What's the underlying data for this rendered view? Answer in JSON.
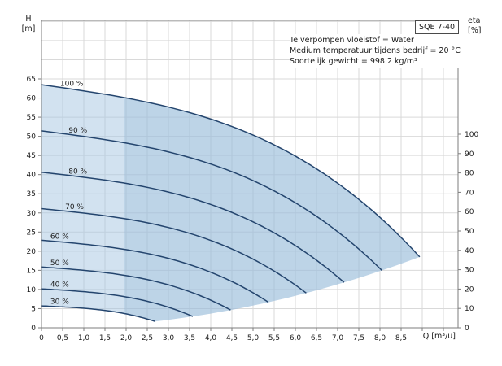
{
  "title_box": {
    "label": "SQE 7-40"
  },
  "axis_titles": {
    "left": [
      "H",
      "[m]"
    ],
    "right": [
      "eta",
      "[%]"
    ],
    "bottom": "Q [m³/u]"
  },
  "annotation": {
    "lines": [
      "Te verpompen vloeistof = Water",
      "Medium temperatuur tijdens bedrijf = 20 °C",
      "Soortelijk gewicht = 998.2 kg/m³"
    ]
  },
  "chart_data": {
    "type": "line",
    "title": "SQE 7-40 pump performance curves",
    "xlabel": "Q [m³/u]",
    "ylabel_left": "H [m]",
    "ylabel_right": "eta [%]",
    "x_axis": {
      "min": 0,
      "max": 9.85,
      "tick_step": 0.5,
      "last_labeled_tick": 8.5,
      "decimal_separator": ","
    },
    "y_axis_left": {
      "min": 0,
      "max": 65,
      "tick_step": 5
    },
    "y_axis_right": {
      "min": 0,
      "max": 100,
      "tick_step": 10
    },
    "grid": true,
    "legend_position": "on-curve-labels",
    "series": [
      {
        "name": "100 %",
        "speed": 1.0,
        "shutoff_head_m": 63.5,
        "max_flow_m3h": 8.94,
        "head_at_max_flow_m": 18.5,
        "label_anchor_q": 0.44
      },
      {
        "name": "90 %",
        "speed": 0.9,
        "shutoff_head_m": 51.4,
        "max_flow_m3h": 8.05,
        "head_at_max_flow_m": 15.0,
        "label_anchor_q": 0.64
      },
      {
        "name": "80 %",
        "speed": 0.8,
        "shutoff_head_m": 40.6,
        "max_flow_m3h": 7.15,
        "head_at_max_flow_m": 11.8,
        "label_anchor_q": 0.64
      },
      {
        "name": "70 %",
        "speed": 0.7,
        "shutoff_head_m": 31.1,
        "max_flow_m3h": 6.26,
        "head_at_max_flow_m": 9.1,
        "label_anchor_q": 0.56
      },
      {
        "name": "60 %",
        "speed": 0.6,
        "shutoff_head_m": 22.9,
        "max_flow_m3h": 5.36,
        "head_at_max_flow_m": 6.7,
        "label_anchor_q": 0.21
      },
      {
        "name": "50 %",
        "speed": 0.5,
        "shutoff_head_m": 15.9,
        "max_flow_m3h": 4.47,
        "head_at_max_flow_m": 4.6,
        "label_anchor_q": 0.21
      },
      {
        "name": "40 %",
        "speed": 0.4,
        "shutoff_head_m": 10.2,
        "max_flow_m3h": 3.58,
        "head_at_max_flow_m": 3.0,
        "label_anchor_q": 0.21
      },
      {
        "name": "30 %",
        "speed": 0.3,
        "shutoff_head_m": 5.7,
        "max_flow_m3h": 2.68,
        "head_at_max_flow_m": 1.7,
        "label_anchor_q": 0.21
      }
    ],
    "curve_model": {
      "type": "affinity_cubic",
      "description": "H(Q)=s^2*(h0 - (a*q + b*q^2 + c*q^3)), q=Q/s",
      "h0": 63.5,
      "a": 1.597,
      "b": -0.0176,
      "c": 0.04496,
      "max_flow_100": 8.94,
      "head_at_max_flow_100": 18.5
    },
    "operating_range_divider_q": 1.95,
    "colors": {
      "curve": "#24456e",
      "fill_light": "rgba(166,197,226,0.50)",
      "fill_dark_overlay": "rgba(143,178,212,0.30)",
      "grid": "#d9d9d9",
      "axis": "#7d7d7d",
      "text": "#1a1a1a"
    }
  }
}
